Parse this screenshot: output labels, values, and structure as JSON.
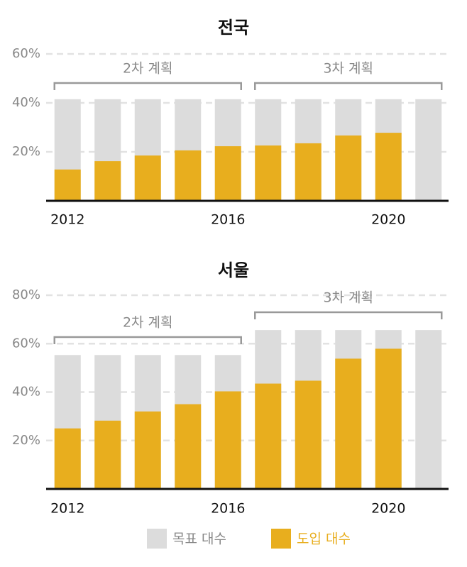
{
  "chart_data": [
    {
      "type": "bar",
      "title": "전국",
      "categories": [
        "2012",
        null,
        null,
        null,
        "2016",
        null,
        null,
        null,
        "2020",
        null
      ],
      "series": [
        {
          "name": "목표 대수",
          "color": "#dcdcdc",
          "values": [
            41.5,
            41.5,
            41.5,
            41.5,
            41.5,
            41.5,
            41.5,
            41.5,
            41.5,
            41.5
          ]
        },
        {
          "name": "도입 대수",
          "color": "#e8ae1e",
          "values": [
            12.8,
            16.2,
            18.5,
            20.6,
            22.3,
            22.6,
            23.5,
            26.7,
            27.8,
            null
          ]
        }
      ],
      "annotations": [
        "2차 계획",
        "3차 계획"
      ],
      "ylim": [
        0,
        60
      ],
      "yticks": [
        {
          "value": 20,
          "label": "20%"
        },
        {
          "value": 40,
          "label": "40%"
        },
        {
          "value": 60,
          "label": "60%"
        }
      ],
      "grid": true
    },
    {
      "type": "bar",
      "title": "서울",
      "categories": [
        "2012",
        null,
        null,
        null,
        "2016",
        null,
        null,
        null,
        "2020",
        null
      ],
      "series": [
        {
          "name": "목표 대수",
          "color": "#dcdcdc",
          "values": [
            55.3,
            55.3,
            55.3,
            55.3,
            55.3,
            65.6,
            65.6,
            65.6,
            65.6,
            65.6
          ]
        },
        {
          "name": "도입 대수",
          "color": "#e8ae1e",
          "values": [
            25,
            28.2,
            32,
            35,
            40.3,
            43.5,
            44.7,
            53.8,
            57.9,
            null
          ]
        }
      ],
      "annotations": [
        "2차 계획",
        "3차 계획"
      ],
      "ylim": [
        0,
        80
      ],
      "yticks": [
        {
          "value": 20,
          "label": "20%"
        },
        {
          "value": 40,
          "label": "40%"
        },
        {
          "value": 60,
          "label": "60%"
        },
        {
          "value": 80,
          "label": "80%"
        }
      ],
      "grid": true
    }
  ]
}
